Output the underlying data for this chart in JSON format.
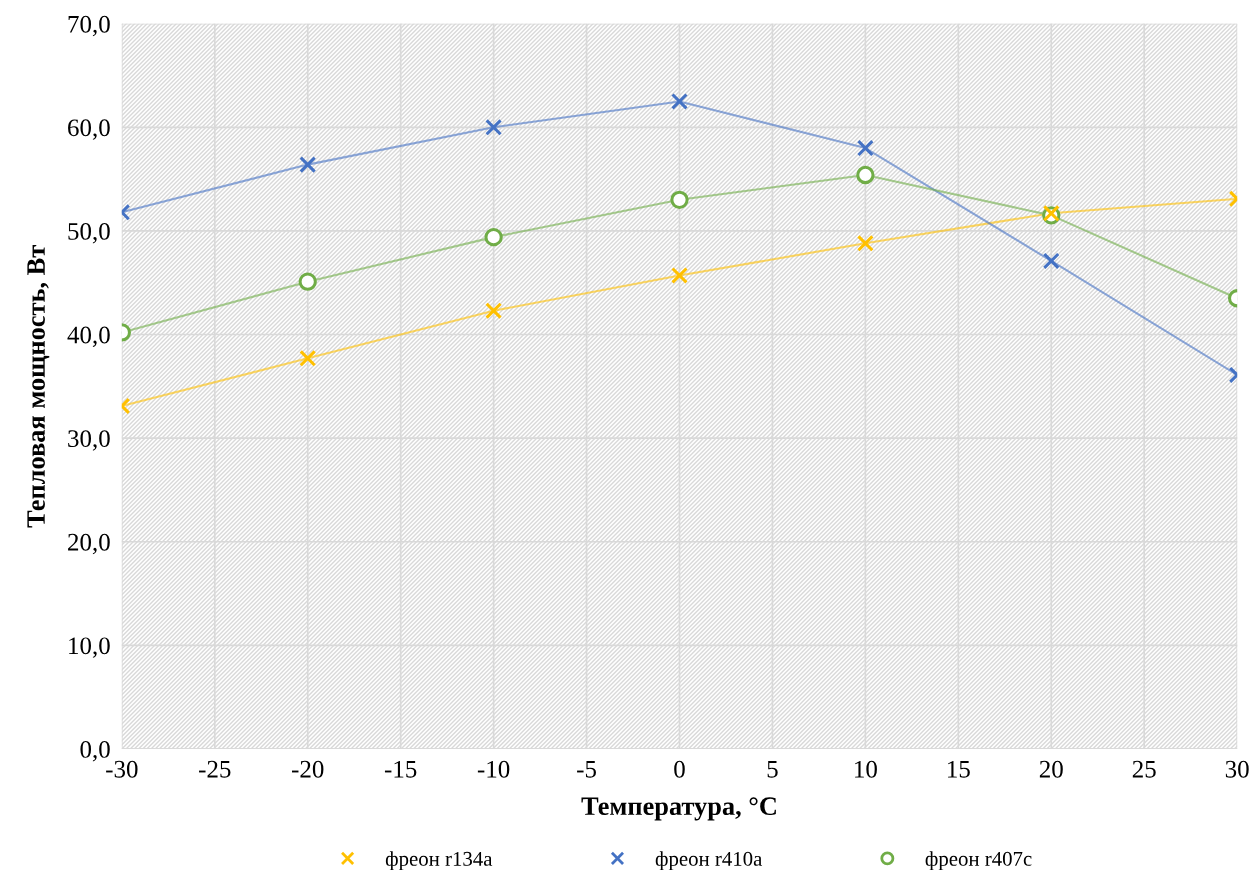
{
  "chart_data": {
    "type": "line",
    "xlabel": "Температура, °C",
    "ylabel": "Тепловая мощность, Вт",
    "x": [
      -30,
      -20,
      -10,
      0,
      10,
      20,
      30
    ],
    "series": [
      {
        "name": "фреон r134a",
        "color": "#ffc000",
        "marker": "cross",
        "values": [
          33.1,
          37.7,
          42.3,
          45.7,
          48.8,
          51.7,
          53.1
        ]
      },
      {
        "name": "фреон r410a",
        "color": "#4472c4",
        "marker": "cross",
        "values": [
          51.8,
          56.4,
          60.0,
          62.5,
          58.0,
          47.1,
          36.1
        ]
      },
      {
        "name": "фреон r407c",
        "color": "#70ad47",
        "marker": "circle",
        "values": [
          40.2,
          45.1,
          49.4,
          53.0,
          55.4,
          51.5,
          43.5
        ]
      }
    ],
    "xlim": [
      -30,
      30
    ],
    "xticks": [
      -30,
      -25,
      -20,
      -15,
      -10,
      -5,
      0,
      5,
      10,
      15,
      20,
      25,
      30
    ],
    "ylim": [
      0,
      70
    ],
    "yticks": [
      {
        "value": 0,
        "label": "0,0"
      },
      {
        "value": 10,
        "label": "10,0"
      },
      {
        "value": 20,
        "label": "20,0"
      },
      {
        "value": 30,
        "label": "30,0"
      },
      {
        "value": 40,
        "label": "40,0"
      },
      {
        "value": 50,
        "label": "50,0"
      },
      {
        "value": 60,
        "label": "60,0"
      },
      {
        "value": 70,
        "label": "70,0"
      }
    ],
    "grid": true,
    "legend": "bottom",
    "line_style": "solid"
  }
}
